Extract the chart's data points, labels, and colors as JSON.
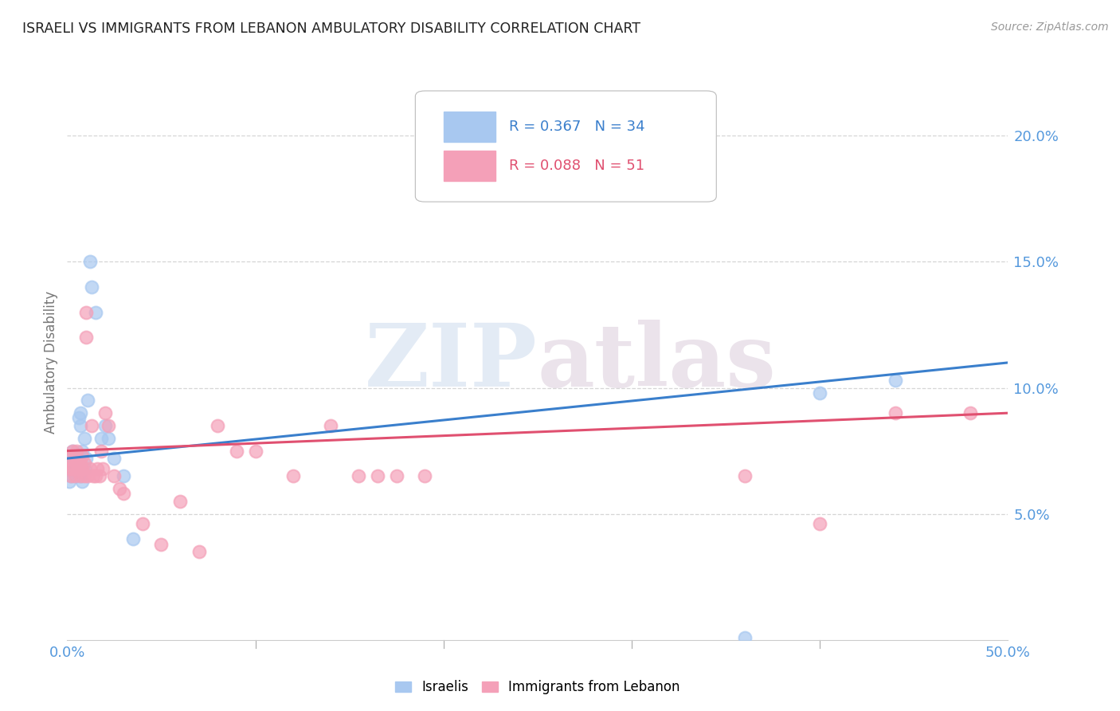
{
  "title": "ISRAELI VS IMMIGRANTS FROM LEBANON AMBULATORY DISABILITY CORRELATION CHART",
  "source": "Source: ZipAtlas.com",
  "ylabel": "Ambulatory Disability",
  "watermark": "ZIPatlas",
  "xlim": [
    0.0,
    0.5
  ],
  "ylim": [
    0.0,
    0.22
  ],
  "ytick_positions": [
    0.05,
    0.1,
    0.15,
    0.2
  ],
  "ytick_labels": [
    "5.0%",
    "10.0%",
    "15.0%",
    "20.0%"
  ],
  "xtick_left_label": "0.0%",
  "xtick_right_label": "50.0%",
  "legend_R_blue": "R = 0.367",
  "legend_N_blue": "N = 34",
  "legend_R_pink": "R = 0.088",
  "legend_N_pink": "N = 51",
  "blue_color": "#A8C8F0",
  "pink_color": "#F4A0B8",
  "blue_line_color": "#3A7FCC",
  "pink_line_color": "#E05070",
  "background_color": "#ffffff",
  "grid_color": "#cccccc",
  "title_color": "#222222",
  "axis_label_color": "#777777",
  "tick_color": "#5599DD",
  "israelis_x": [
    0.001,
    0.001,
    0.002,
    0.002,
    0.003,
    0.003,
    0.004,
    0.004,
    0.005,
    0.005,
    0.006,
    0.006,
    0.007,
    0.007,
    0.007,
    0.008,
    0.008,
    0.008,
    0.009,
    0.009,
    0.01,
    0.011,
    0.012,
    0.013,
    0.015,
    0.018,
    0.02,
    0.022,
    0.025,
    0.03,
    0.035,
    0.36,
    0.4,
    0.44
  ],
  "israelis_y": [
    0.068,
    0.063,
    0.072,
    0.065,
    0.07,
    0.075,
    0.068,
    0.071,
    0.07,
    0.065,
    0.088,
    0.073,
    0.09,
    0.085,
    0.065,
    0.075,
    0.068,
    0.063,
    0.08,
    0.068,
    0.072,
    0.095,
    0.15,
    0.14,
    0.13,
    0.08,
    0.085,
    0.08,
    0.072,
    0.065,
    0.04,
    0.001,
    0.098,
    0.103
  ],
  "lebanon_x": [
    0.001,
    0.001,
    0.002,
    0.002,
    0.003,
    0.003,
    0.004,
    0.004,
    0.005,
    0.005,
    0.006,
    0.006,
    0.007,
    0.007,
    0.008,
    0.008,
    0.009,
    0.009,
    0.01,
    0.01,
    0.011,
    0.012,
    0.013,
    0.014,
    0.015,
    0.016,
    0.017,
    0.018,
    0.019,
    0.02,
    0.022,
    0.025,
    0.028,
    0.03,
    0.04,
    0.05,
    0.06,
    0.07,
    0.08,
    0.09,
    0.1,
    0.12,
    0.14,
    0.155,
    0.165,
    0.175,
    0.19,
    0.36,
    0.4,
    0.44,
    0.48
  ],
  "lebanon_y": [
    0.072,
    0.068,
    0.065,
    0.07,
    0.075,
    0.068,
    0.072,
    0.065,
    0.07,
    0.075,
    0.068,
    0.071,
    0.065,
    0.07,
    0.068,
    0.073,
    0.065,
    0.07,
    0.13,
    0.12,
    0.065,
    0.068,
    0.085,
    0.065,
    0.065,
    0.068,
    0.065,
    0.075,
    0.068,
    0.09,
    0.085,
    0.065,
    0.06,
    0.058,
    0.046,
    0.038,
    0.055,
    0.035,
    0.085,
    0.075,
    0.075,
    0.065,
    0.085,
    0.065,
    0.065,
    0.065,
    0.065,
    0.065,
    0.046,
    0.09,
    0.09
  ]
}
